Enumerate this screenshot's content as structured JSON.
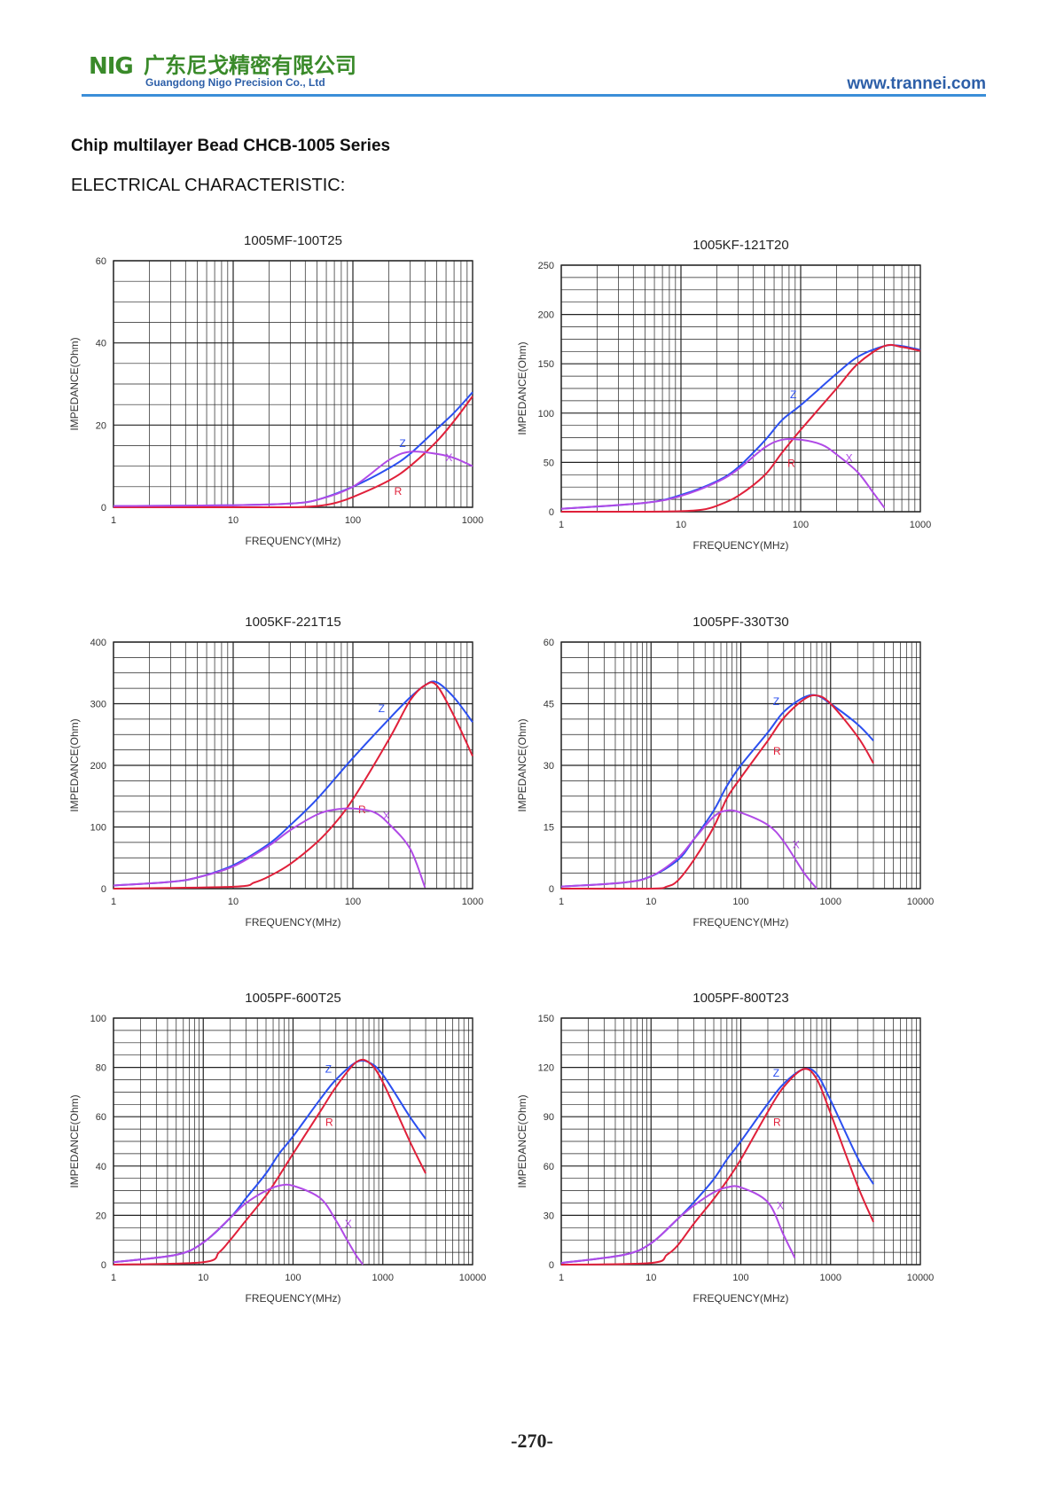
{
  "header": {
    "logo_text": "NIG",
    "company_cn": "广东尼戈精密有限公司",
    "company_en": "Guangdong Nigo Precision Co., Ltd",
    "website": "www.trannei.com"
  },
  "document": {
    "title": "Chip multilayer Bead CHCB-1005 Series",
    "section": "ELECTRICAL CHARACTERISTIC:"
  },
  "page_number": "-270-",
  "colors": {
    "Z": "#2b4ff0",
    "R": "#e0203a",
    "X": "#b04ae6",
    "grid": "#222222",
    "header_rule": "#3b8ed8",
    "brand_green": "#3a8a2a"
  },
  "chart_data": [
    {
      "type": "line",
      "title": "1005MF-100T25",
      "xlabel": "FREQUENCY(MHz)",
      "ylabel": "IMPEDANCE(Ohm)",
      "xscale": "log",
      "xlim": [
        1,
        1000
      ],
      "xticks": [
        1,
        10,
        100,
        1000
      ],
      "xtick_labels": [
        "1",
        "10",
        "100",
        "1000"
      ],
      "ylim": [
        0,
        60
      ],
      "yticks": [
        0,
        20,
        40,
        60
      ],
      "ytick_labels": [
        "0",
        "20",
        "40",
        "60"
      ],
      "grid": true,
      "series": [
        {
          "name": "Z",
          "x": [
            1,
            10,
            30,
            50,
            100,
            200,
            300,
            500,
            700,
            1000
          ],
          "y": [
            0.3,
            0.5,
            0.9,
            1.8,
            5,
            9.5,
            13,
            19,
            23,
            28
          ]
        },
        {
          "name": "R",
          "x": [
            1,
            10,
            30,
            50,
            70,
            100,
            200,
            300,
            500,
            700,
            1000
          ],
          "y": [
            0,
            0,
            0,
            0.3,
            1,
            2.5,
            6.5,
            10,
            16,
            21,
            27
          ]
        },
        {
          "name": "X",
          "x": [
            1,
            10,
            30,
            50,
            100,
            200,
            300,
            500,
            700,
            1000
          ],
          "y": [
            0.3,
            0.5,
            0.9,
            1.8,
            5,
            11.5,
            13.5,
            13,
            12,
            10
          ]
        }
      ]
    },
    {
      "type": "line",
      "title": "1005KF-121T20",
      "xlabel": "FREQUENCY(MHz)",
      "ylabel": "IMPEDANCE(Ohm)",
      "xscale": "log",
      "xlim": [
        1,
        1000
      ],
      "xticks": [
        1,
        10,
        100,
        1000
      ],
      "xtick_labels": [
        "1",
        "10",
        "100",
        "1000"
      ],
      "ylim": [
        0,
        250
      ],
      "yticks": [
        0,
        50,
        100,
        150,
        200,
        250
      ],
      "ytick_labels": [
        "0",
        "50",
        "100",
        "150",
        "200",
        "250"
      ],
      "grid": true,
      "series": [
        {
          "name": "Z",
          "x": [
            1,
            5,
            10,
            20,
            30,
            50,
            70,
            100,
            200,
            300,
            500,
            700,
            1000
          ],
          "y": [
            3,
            9,
            17,
            31,
            45,
            72,
            93,
            108,
            140,
            157,
            168,
            168,
            164
          ]
        },
        {
          "name": "R",
          "x": [
            1,
            5,
            10,
            15,
            20,
            30,
            50,
            70,
            100,
            200,
            300,
            500,
            700,
            1000
          ],
          "y": [
            0,
            0,
            0.5,
            2,
            6,
            16,
            37,
            60,
            83,
            125,
            150,
            168,
            167,
            163
          ]
        },
        {
          "name": "X",
          "x": [
            1,
            5,
            10,
            20,
            30,
            50,
            70,
            100,
            150,
            200,
            300,
            400,
            500
          ],
          "y": [
            3,
            9,
            16,
            30,
            43,
            65,
            73,
            73,
            68,
            58,
            40,
            20,
            4
          ]
        }
      ]
    },
    {
      "type": "line",
      "title": "1005KF-221T15",
      "xlabel": "FREQUENCY(MHz)",
      "ylabel": "IMPEDANCE(Ohm)",
      "xscale": "log",
      "xlim": [
        1,
        1000
      ],
      "xticks": [
        1,
        10,
        100,
        1000
      ],
      "xtick_labels": [
        "1",
        "10",
        "100",
        "1000"
      ],
      "ylim": [
        0,
        400
      ],
      "yticks": [
        0,
        100,
        200,
        300,
        400
      ],
      "ytick_labels": [
        "0",
        "100",
        "200",
        "300",
        "400"
      ],
      "grid": true,
      "series": [
        {
          "name": "Z",
          "x": [
            1,
            3,
            5,
            10,
            20,
            30,
            50,
            100,
            200,
            300,
            400,
            500,
            700,
            1000
          ],
          "y": [
            5,
            11,
            18,
            38,
            73,
            103,
            145,
            212,
            275,
            310,
            330,
            335,
            310,
            270
          ]
        },
        {
          "name": "R",
          "x": [
            1,
            10,
            15,
            20,
            30,
            50,
            70,
            100,
            200,
            300,
            400,
            500,
            700,
            1000
          ],
          "y": [
            0,
            3,
            10,
            20,
            40,
            75,
            105,
            145,
            242,
            305,
            330,
            330,
            280,
            215
          ]
        },
        {
          "name": "X",
          "x": [
            1,
            3,
            5,
            10,
            20,
            30,
            50,
            70,
            100,
            150,
            200,
            300,
            400
          ],
          "y": [
            5,
            11,
            18,
            36,
            70,
            95,
            120,
            128,
            130,
            124,
            105,
            65,
            2
          ]
        }
      ]
    },
    {
      "type": "line",
      "title": "1005PF-330T30",
      "xlabel": "FREQUENCY(MHz)",
      "ylabel": "IMPEDANCE(Ohm)",
      "xscale": "log",
      "xlim": [
        1,
        10000
      ],
      "xticks": [
        1,
        10,
        100,
        1000,
        10000
      ],
      "xtick_labels": [
        "1",
        "10",
        "100",
        "1000",
        "10000"
      ],
      "ylim": [
        0,
        60
      ],
      "yticks": [
        0,
        15,
        30,
        45,
        60
      ],
      "ytick_labels": [
        "0",
        "15",
        "30",
        "45",
        "60"
      ],
      "grid": true,
      "series": [
        {
          "name": "Z",
          "x": [
            1,
            5,
            10,
            20,
            30,
            50,
            70,
            100,
            200,
            300,
            500,
            700,
            1000,
            2000,
            3000
          ],
          "y": [
            0.5,
            1.5,
            3,
            7,
            12,
            19,
            25,
            30,
            38,
            43,
            46.5,
            47,
            45,
            40,
            36
          ]
        },
        {
          "name": "R",
          "x": [
            1,
            10,
            15,
            20,
            30,
            50,
            70,
            100,
            200,
            300,
            500,
            700,
            1000,
            2000,
            3000
          ],
          "y": [
            0,
            0,
            0.5,
            2,
            7,
            15,
            22,
            27,
            36,
            41.5,
            46,
            47,
            45,
            37,
            30.5
          ]
        },
        {
          "name": "X",
          "x": [
            1,
            5,
            10,
            20,
            30,
            50,
            70,
            100,
            200,
            300,
            500,
            700
          ],
          "y": [
            0.5,
            1.5,
            3,
            7.5,
            12,
            17.5,
            19,
            18.5,
            15.5,
            11.5,
            4,
            0
          ]
        }
      ]
    },
    {
      "type": "line",
      "title": "1005PF-600T25",
      "xlabel": "FREQUENCY(MHz)",
      "ylabel": "IMPEDANCE(Ohm)",
      "xscale": "log",
      "xlim": [
        1,
        10000
      ],
      "xticks": [
        1,
        10,
        100,
        1000,
        10000
      ],
      "xtick_labels": [
        "1",
        "10",
        "100",
        "1000",
        "10000"
      ],
      "ylim": [
        0,
        100
      ],
      "yticks": [
        0,
        20,
        40,
        60,
        80,
        100
      ],
      "ytick_labels": [
        "0",
        "20",
        "40",
        "60",
        "80",
        "100"
      ],
      "grid": true,
      "series": [
        {
          "name": "Z",
          "x": [
            1,
            5,
            10,
            20,
            30,
            50,
            70,
            100,
            200,
            300,
            500,
            700,
            1000,
            2000,
            3000
          ],
          "y": [
            1,
            4,
            9,
            19,
            27,
            37,
            45,
            52,
            67,
            75,
            82,
            82,
            77,
            60,
            51
          ]
        },
        {
          "name": "R",
          "x": [
            1,
            10,
            15,
            20,
            30,
            50,
            70,
            100,
            200,
            300,
            500,
            700,
            1000,
            2000,
            3000
          ],
          "y": [
            0,
            1,
            5,
            10,
            18,
            28,
            36,
            45,
            62,
            72,
            82,
            82,
            74,
            50,
            37
          ]
        },
        {
          "name": "X",
          "x": [
            1,
            5,
            10,
            20,
            30,
            50,
            70,
            100,
            200,
            300,
            400,
            500,
            600
          ],
          "y": [
            1,
            4,
            9,
            19,
            25,
            30,
            32,
            32,
            27,
            18,
            10,
            4,
            0
          ]
        }
      ]
    },
    {
      "type": "line",
      "title": "1005PF-800T23",
      "xlabel": "FREQUENCY(MHz)",
      "ylabel": "IMPEDANCE(Ohm)",
      "xscale": "log",
      "xlim": [
        1,
        10000
      ],
      "xticks": [
        1,
        10,
        100,
        1000,
        10000
      ],
      "xtick_labels": [
        "1",
        "10",
        "100",
        "1000",
        "10000"
      ],
      "ylim": [
        0,
        150
      ],
      "yticks": [
        0,
        30,
        60,
        90,
        120,
        150
      ],
      "ytick_labels": [
        "0",
        "30",
        "60",
        "90",
        "120",
        "150"
      ],
      "grid": true,
      "series": [
        {
          "name": "Z",
          "x": [
            1,
            5,
            10,
            20,
            30,
            50,
            70,
            100,
            200,
            300,
            500,
            700,
            1000,
            2000,
            3000
          ],
          "y": [
            1,
            6,
            13,
            28,
            38,
            52,
            64,
            75,
            98,
            110,
            119,
            116,
            100,
            65,
            49
          ]
        },
        {
          "name": "R",
          "x": [
            1,
            10,
            15,
            20,
            30,
            50,
            70,
            100,
            200,
            300,
            500,
            700,
            1000,
            2000,
            3000
          ],
          "y": [
            0,
            1,
            6,
            12,
            25,
            40,
            51,
            64,
            93,
            108,
            119,
            113,
            92,
            48,
            26
          ]
        },
        {
          "name": "X",
          "x": [
            1,
            5,
            10,
            20,
            30,
            50,
            70,
            100,
            200,
            300,
            400
          ],
          "y": [
            1,
            6,
            13,
            28,
            36,
            44,
            47,
            47,
            38,
            18,
            4
          ]
        }
      ]
    }
  ]
}
